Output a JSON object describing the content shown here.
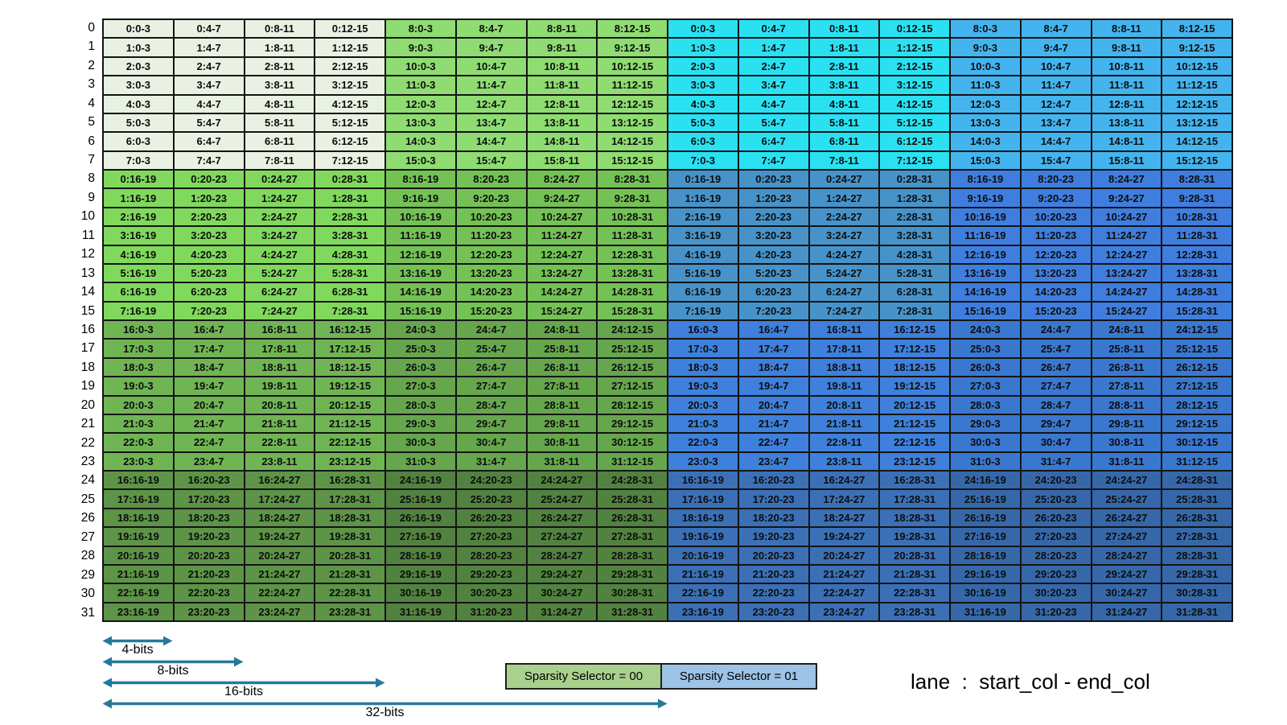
{
  "caption": "lane  :  start_col - end_col",
  "colors": {
    "grid_line": "#141414",
    "arrow": "#27789B",
    "legend_green": "#A9D18E",
    "legend_blue": "#9DC3E6",
    "bands": [
      [
        "#E8F1E2",
        "#8EDC72",
        "#2AE1F2",
        "#44B4EE"
      ],
      [
        "#80D95D",
        "#74C255",
        "#4793C9",
        "#3F7EDE"
      ],
      [
        "#70B554",
        "#66A74D",
        "#3E80DB",
        "#3A78D0"
      ],
      [
        "#5D9447",
        "#528240",
        "#3B70B7",
        "#3668A9"
      ]
    ]
  },
  "legend": [
    {
      "label": "Sparsity Selector = 00",
      "color_key": "legend_green"
    },
    {
      "label": "Sparsity Selector = 01",
      "color_key": "legend_blue"
    }
  ],
  "arrows": [
    {
      "label": "4-bits",
      "span_cols": 1
    },
    {
      "label": "8-bits",
      "span_cols": 2
    },
    {
      "label": "16-bits",
      "span_cols": 4
    },
    {
      "label": "32-bits",
      "span_cols": 8
    }
  ],
  "grid": {
    "row_labels": [
      "0",
      "1",
      "2",
      "3",
      "4",
      "5",
      "6",
      "7",
      "8",
      "9",
      "10",
      "11",
      "12",
      "13",
      "14",
      "15",
      "16",
      "17",
      "18",
      "19",
      "20",
      "21",
      "22",
      "23",
      "24",
      "25",
      "26",
      "27",
      "28",
      "29",
      "30",
      "31"
    ],
    "rows": [
      [
        "0:0-3",
        "0:4-7",
        "0:8-11",
        "0:12-15",
        "8:0-3",
        "8:4-7",
        "8:8-11",
        "8:12-15",
        "0:0-3",
        "0:4-7",
        "0:8-11",
        "0:12-15",
        "8:0-3",
        "8:4-7",
        "8:8-11",
        "8:12-15"
      ],
      [
        "1:0-3",
        "1:4-7",
        "1:8-11",
        "1:12-15",
        "9:0-3",
        "9:4-7",
        "9:8-11",
        "9:12-15",
        "1:0-3",
        "1:4-7",
        "1:8-11",
        "1:12-15",
        "9:0-3",
        "9:4-7",
        "9:8-11",
        "9:12-15"
      ],
      [
        "2:0-3",
        "2:4-7",
        "2:8-11",
        "2:12-15",
        "10:0-3",
        "10:4-7",
        "10:8-11",
        "10:12-15",
        "2:0-3",
        "2:4-7",
        "2:8-11",
        "2:12-15",
        "10:0-3",
        "10:4-7",
        "10:8-11",
        "10:12-15"
      ],
      [
        "3:0-3",
        "3:4-7",
        "3:8-11",
        "3:12-15",
        "11:0-3",
        "11:4-7",
        "11:8-11",
        "11:12-15",
        "3:0-3",
        "3:4-7",
        "3:8-11",
        "3:12-15",
        "11:0-3",
        "11:4-7",
        "11:8-11",
        "11:12-15"
      ],
      [
        "4:0-3",
        "4:4-7",
        "4:8-11",
        "4:12-15",
        "12:0-3",
        "12:4-7",
        "12:8-11",
        "12:12-15",
        "4:0-3",
        "4:4-7",
        "4:8-11",
        "4:12-15",
        "12:0-3",
        "12:4-7",
        "12:8-11",
        "12:12-15"
      ],
      [
        "5:0-3",
        "5:4-7",
        "5:8-11",
        "5:12-15",
        "13:0-3",
        "13:4-7",
        "13:8-11",
        "13:12-15",
        "5:0-3",
        "5:4-7",
        "5:8-11",
        "5:12-15",
        "13:0-3",
        "13:4-7",
        "13:8-11",
        "13:12-15"
      ],
      [
        "6:0-3",
        "6:4-7",
        "6:8-11",
        "6:12-15",
        "14:0-3",
        "14:4-7",
        "14:8-11",
        "14:12-15",
        "6:0-3",
        "6:4-7",
        "6:8-11",
        "6:12-15",
        "14:0-3",
        "14:4-7",
        "14:8-11",
        "14:12-15"
      ],
      [
        "7:0-3",
        "7:4-7",
        "7:8-11",
        "7:12-15",
        "15:0-3",
        "15:4-7",
        "15:8-11",
        "15:12-15",
        "7:0-3",
        "7:4-7",
        "7:8-11",
        "7:12-15",
        "15:0-3",
        "15:4-7",
        "15:8-11",
        "15:12-15"
      ],
      [
        "0:16-19",
        "0:20-23",
        "0:24-27",
        "0:28-31",
        "8:16-19",
        "8:20-23",
        "8:24-27",
        "8:28-31",
        "0:16-19",
        "0:20-23",
        "0:24-27",
        "0:28-31",
        "8:16-19",
        "8:20-23",
        "8:24-27",
        "8:28-31"
      ],
      [
        "1:16-19",
        "1:20-23",
        "1:24-27",
        "1:28-31",
        "9:16-19",
        "9:20-23",
        "9:24-27",
        "9:28-31",
        "1:16-19",
        "1:20-23",
        "1:24-27",
        "1:28-31",
        "9:16-19",
        "9:20-23",
        "9:24-27",
        "9:28-31"
      ],
      [
        "2:16-19",
        "2:20-23",
        "2:24-27",
        "2:28-31",
        "10:16-19",
        "10:20-23",
        "10:24-27",
        "10:28-31",
        "2:16-19",
        "2:20-23",
        "2:24-27",
        "2:28-31",
        "10:16-19",
        "10:20-23",
        "10:24-27",
        "10:28-31"
      ],
      [
        "3:16-19",
        "3:20-23",
        "3:24-27",
        "3:28-31",
        "11:16-19",
        "11:20-23",
        "11:24-27",
        "11:28-31",
        "3:16-19",
        "3:20-23",
        "3:24-27",
        "3:28-31",
        "11:16-19",
        "11:20-23",
        "11:24-27",
        "11:28-31"
      ],
      [
        "4:16-19",
        "4:20-23",
        "4:24-27",
        "4:28-31",
        "12:16-19",
        "12:20-23",
        "12:24-27",
        "12:28-31",
        "4:16-19",
        "4:20-23",
        "4:24-27",
        "4:28-31",
        "12:16-19",
        "12:20-23",
        "12:24-27",
        "12:28-31"
      ],
      [
        "5:16-19",
        "5:20-23",
        "5:24-27",
        "5:28-31",
        "13:16-19",
        "13:20-23",
        "13:24-27",
        "13:28-31",
        "5:16-19",
        "5:20-23",
        "5:24-27",
        "5:28-31",
        "13:16-19",
        "13:20-23",
        "13:24-27",
        "13:28-31"
      ],
      [
        "6:16-19",
        "6:20-23",
        "6:24-27",
        "6:28-31",
        "14:16-19",
        "14:20-23",
        "14:24-27",
        "14:28-31",
        "6:16-19",
        "6:20-23",
        "6:24-27",
        "6:28-31",
        "14:16-19",
        "14:20-23",
        "14:24-27",
        "14:28-31"
      ],
      [
        "7:16-19",
        "7:20-23",
        "7:24-27",
        "7:28-31",
        "15:16-19",
        "15:20-23",
        "15:24-27",
        "15:28-31",
        "7:16-19",
        "7:20-23",
        "7:24-27",
        "7:28-31",
        "15:16-19",
        "15:20-23",
        "15:24-27",
        "15:28-31"
      ],
      [
        "16:0-3",
        "16:4-7",
        "16:8-11",
        "16:12-15",
        "24:0-3",
        "24:4-7",
        "24:8-11",
        "24:12-15",
        "16:0-3",
        "16:4-7",
        "16:8-11",
        "16:12-15",
        "24:0-3",
        "24:4-7",
        "24:8-11",
        "24:12-15"
      ],
      [
        "17:0-3",
        "17:4-7",
        "17:8-11",
        "17:12-15",
        "25:0-3",
        "25:4-7",
        "25:8-11",
        "25:12-15",
        "17:0-3",
        "17:4-7",
        "17:8-11",
        "17:12-15",
        "25:0-3",
        "25:4-7",
        "25:8-11",
        "25:12-15"
      ],
      [
        "18:0-3",
        "18:4-7",
        "18:8-11",
        "18:12-15",
        "26:0-3",
        "26:4-7",
        "26:8-11",
        "26:12-15",
        "18:0-3",
        "18:4-7",
        "18:8-11",
        "18:12-15",
        "26:0-3",
        "26:4-7",
        "26:8-11",
        "26:12-15"
      ],
      [
        "19:0-3",
        "19:4-7",
        "19:8-11",
        "19:12-15",
        "27:0-3",
        "27:4-7",
        "27:8-11",
        "27:12-15",
        "19:0-3",
        "19:4-7",
        "19:8-11",
        "19:12-15",
        "27:0-3",
        "27:4-7",
        "27:8-11",
        "27:12-15"
      ],
      [
        "20:0-3",
        "20:4-7",
        "20:8-11",
        "20:12-15",
        "28:0-3",
        "28:4-7",
        "28:8-11",
        "28:12-15",
        "20:0-3",
        "20:4-7",
        "20:8-11",
        "20:12-15",
        "28:0-3",
        "28:4-7",
        "28:8-11",
        "28:12-15"
      ],
      [
        "21:0-3",
        "21:4-7",
        "21:8-11",
        "21:12-15",
        "29:0-3",
        "29:4-7",
        "29:8-11",
        "29:12-15",
        "21:0-3",
        "21:4-7",
        "21:8-11",
        "21:12-15",
        "29:0-3",
        "29:4-7",
        "29:8-11",
        "29:12-15"
      ],
      [
        "22:0-3",
        "22:4-7",
        "22:8-11",
        "22:12-15",
        "30:0-3",
        "30:4-7",
        "30:8-11",
        "30:12-15",
        "22:0-3",
        "22:4-7",
        "22:8-11",
        "22:12-15",
        "30:0-3",
        "30:4-7",
        "30:8-11",
        "30:12-15"
      ],
      [
        "23:0-3",
        "23:4-7",
        "23:8-11",
        "23:12-15",
        "31:0-3",
        "31:4-7",
        "31:8-11",
        "31:12-15",
        "23:0-3",
        "23:4-7",
        "23:8-11",
        "23:12-15",
        "31:0-3",
        "31:4-7",
        "31:8-11",
        "31:12-15"
      ],
      [
        "16:16-19",
        "16:20-23",
        "16:24-27",
        "16:28-31",
        "24:16-19",
        "24:20-23",
        "24:24-27",
        "24:28-31",
        "16:16-19",
        "16:20-23",
        "16:24-27",
        "16:28-31",
        "24:16-19",
        "24:20-23",
        "24:24-27",
        "24:28-31"
      ],
      [
        "17:16-19",
        "17:20-23",
        "17:24-27",
        "17:28-31",
        "25:16-19",
        "25:20-23",
        "25:24-27",
        "25:28-31",
        "17:16-19",
        "17:20-23",
        "17:24-27",
        "17:28-31",
        "25:16-19",
        "25:20-23",
        "25:24-27",
        "25:28-31"
      ],
      [
        "18:16-19",
        "18:20-23",
        "18:24-27",
        "18:28-31",
        "26:16-19",
        "26:20-23",
        "26:24-27",
        "26:28-31",
        "18:16-19",
        "18:20-23",
        "18:24-27",
        "18:28-31",
        "26:16-19",
        "26:20-23",
        "26:24-27",
        "26:28-31"
      ],
      [
        "19:16-19",
        "19:20-23",
        "19:24-27",
        "19:28-31",
        "27:16-19",
        "27:20-23",
        "27:24-27",
        "27:28-31",
        "19:16-19",
        "19:20-23",
        "19:24-27",
        "19:28-31",
        "27:16-19",
        "27:20-23",
        "27:24-27",
        "27:28-31"
      ],
      [
        "20:16-19",
        "20:20-23",
        "20:24-27",
        "20:28-31",
        "28:16-19",
        "28:20-23",
        "28:24-27",
        "28:28-31",
        "20:16-19",
        "20:20-23",
        "20:24-27",
        "20:28-31",
        "28:16-19",
        "28:20-23",
        "28:24-27",
        "28:28-31"
      ],
      [
        "21:16-19",
        "21:20-23",
        "21:24-27",
        "21:28-31",
        "29:16-19",
        "29:20-23",
        "29:24-27",
        "29:28-31",
        "21:16-19",
        "21:20-23",
        "21:24-27",
        "21:28-31",
        "29:16-19",
        "29:20-23",
        "29:24-27",
        "29:28-31"
      ],
      [
        "22:16-19",
        "22:20-23",
        "22:24-27",
        "22:28-31",
        "30:16-19",
        "30:20-23",
        "30:24-27",
        "30:28-31",
        "22:16-19",
        "22:20-23",
        "22:24-27",
        "22:28-31",
        "30:16-19",
        "30:20-23",
        "30:24-27",
        "30:28-31"
      ],
      [
        "23:16-19",
        "23:20-23",
        "23:24-27",
        "23:28-31",
        "31:16-19",
        "31:20-23",
        "31:24-27",
        "31:28-31",
        "23:16-19",
        "23:20-23",
        "23:24-27",
        "23:28-31",
        "31:16-19",
        "31:20-23",
        "31:24-27",
        "31:28-31"
      ]
    ]
  }
}
